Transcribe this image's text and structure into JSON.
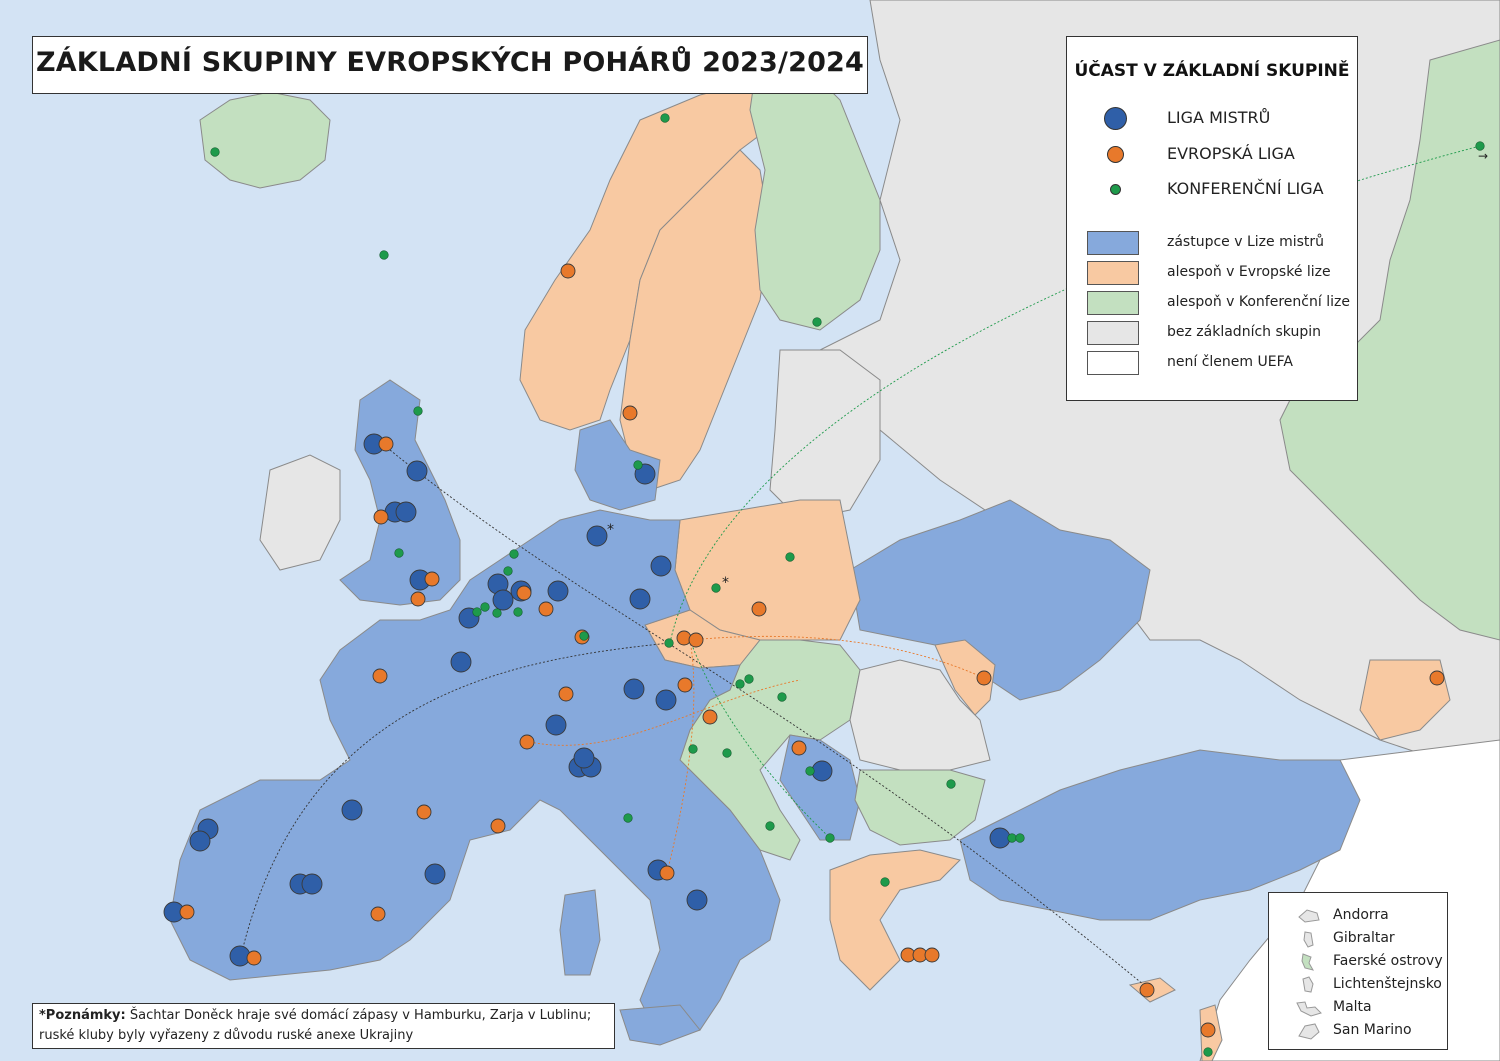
{
  "title": "ZÁKLADNÍ SKUPINY EVROPSKÝCH POHÁRŮ 2023/2024",
  "legend": {
    "title": "ÚČAST V ZÁKLADNÍ SKUPINĚ",
    "dots": [
      {
        "label": "LIGA MISTRŮ",
        "color": "#2f5fa8",
        "key": "cl"
      },
      {
        "label": "EVROPSKÁ LIGA",
        "color": "#e8792b",
        "key": "el"
      },
      {
        "label": "KONFERENČNÍ LIGA",
        "color": "#1e9a4b",
        "key": "ecl"
      }
    ],
    "areas": [
      {
        "label": "zástupce v Lize mistrů",
        "color": "#86a9dc"
      },
      {
        "label": "alespoň v Evropské lize",
        "color": "#f8c9a2"
      },
      {
        "label": "alespoň v Konferenční lize",
        "color": "#c3e0c0"
      },
      {
        "label": "bez základních skupin",
        "color": "#e6e6e6"
      },
      {
        "label": "není členem UEFA",
        "color": "#ffffff"
      }
    ]
  },
  "microstates": [
    {
      "name": "Andorra",
      "color": "#e6e6e6"
    },
    {
      "name": "Gibraltar",
      "color": "#e6e6e6"
    },
    {
      "name": "Faerské ostrovy",
      "color": "#c3e0c0"
    },
    {
      "name": "Lichtenštejnsko",
      "color": "#e6e6e6"
    },
    {
      "name": "Malta",
      "color": "#e6e6e6"
    },
    {
      "name": "San Marino",
      "color": "#e6e6e6"
    }
  ],
  "note": {
    "label": "*Poznámky:",
    "line1": " Šachtar Doněck hraje své domácí zápasy v Hamburku, Zarja v Lublinu;",
    "line2": "ruské kluby byly vyřazeny z důvodu ruské anexe Ukrajiny"
  },
  "asterisk": "*",
  "arrow_symbol": "→",
  "clubs": {
    "cl": [
      [
        374,
        444
      ],
      [
        417,
        471
      ],
      [
        395,
        512
      ],
      [
        406,
        512
      ],
      [
        420,
        580
      ],
      [
        498,
        584
      ],
      [
        503,
        600
      ],
      [
        521,
        591
      ],
      [
        469,
        618
      ],
      [
        558,
        591
      ],
      [
        640,
        599
      ],
      [
        661,
        566
      ],
      [
        597,
        536
      ],
      [
        645,
        474
      ],
      [
        461,
        662
      ],
      [
        634,
        689
      ],
      [
        666,
        700
      ],
      [
        556,
        725
      ],
      [
        579,
        767
      ],
      [
        591,
        767
      ],
      [
        584,
        758
      ],
      [
        822,
        771
      ],
      [
        1000,
        838
      ],
      [
        352,
        810
      ],
      [
        435,
        874
      ],
      [
        208,
        829
      ],
      [
        200,
        841
      ],
      [
        300,
        884
      ],
      [
        312,
        884
      ],
      [
        174,
        912
      ],
      [
        240,
        956
      ],
      [
        658,
        870
      ],
      [
        697,
        900
      ]
    ],
    "el": [
      [
        568,
        271
      ],
      [
        630,
        413
      ],
      [
        386,
        444
      ],
      [
        381,
        517
      ],
      [
        432,
        579
      ],
      [
        418,
        599
      ],
      [
        546,
        609
      ],
      [
        524,
        593
      ],
      [
        684,
        638
      ],
      [
        696,
        640
      ],
      [
        582,
        637
      ],
      [
        685,
        685
      ],
      [
        710,
        717
      ],
      [
        566,
        694
      ],
      [
        527,
        742
      ],
      [
        380,
        676
      ],
      [
        498,
        826
      ],
      [
        424,
        812
      ],
      [
        187,
        912
      ],
      [
        378,
        914
      ],
      [
        254,
        958
      ],
      [
        667,
        873
      ],
      [
        799,
        748
      ],
      [
        984,
        678
      ],
      [
        1437,
        678
      ],
      [
        759,
        609
      ],
      [
        908,
        955
      ],
      [
        920,
        955
      ],
      [
        932,
        955
      ],
      [
        1147,
        990
      ],
      [
        1208,
        1030
      ]
    ],
    "ecl": [
      [
        665,
        118
      ],
      [
        215,
        152
      ],
      [
        384,
        255
      ],
      [
        817,
        322
      ],
      [
        418,
        411
      ],
      [
        638,
        465
      ],
      [
        399,
        553
      ],
      [
        514,
        554
      ],
      [
        508,
        571
      ],
      [
        477,
        612
      ],
      [
        485,
        607
      ],
      [
        497,
        613
      ],
      [
        518,
        612
      ],
      [
        584,
        636
      ],
      [
        669,
        643
      ],
      [
        716,
        588
      ],
      [
        790,
        557
      ],
      [
        740,
        684
      ],
      [
        749,
        679
      ],
      [
        782,
        697
      ],
      [
        693,
        749
      ],
      [
        727,
        753
      ],
      [
        810,
        771
      ],
      [
        770,
        826
      ],
      [
        830,
        838
      ],
      [
        628,
        818
      ],
      [
        885,
        882
      ],
      [
        951,
        784
      ],
      [
        1012,
        838
      ],
      [
        1020,
        838
      ],
      [
        1208,
        1052
      ],
      [
        1480,
        146
      ]
    ]
  }
}
